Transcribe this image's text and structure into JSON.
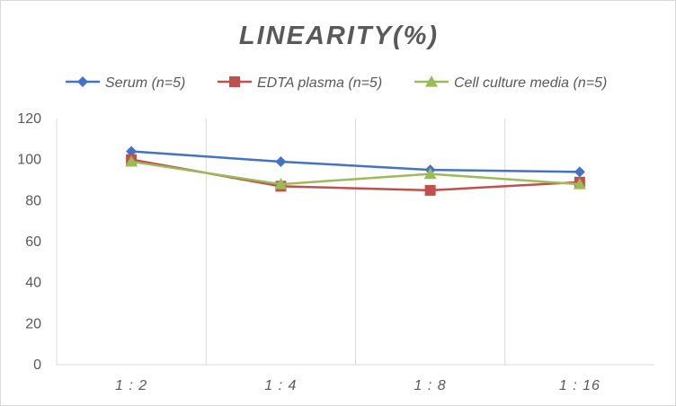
{
  "chart_data": {
    "type": "line",
    "title": "LINEARITY(%)",
    "xlabel": "",
    "ylabel": "",
    "categories": [
      "1:2",
      "1:4",
      "1:8",
      "1:16"
    ],
    "ylim": [
      0,
      120
    ],
    "yticks": [
      0,
      20,
      40,
      60,
      80,
      100,
      120
    ],
    "grid": "vertical",
    "legend_position": "top",
    "series": [
      {
        "name": "Serum (n=5)",
        "values": [
          104,
          99,
          95,
          94
        ],
        "color": "#4472c4",
        "marker": "diamond"
      },
      {
        "name": "EDTA plasma (n=5)",
        "values": [
          100,
          87,
          85,
          89
        ],
        "color": "#c0504d",
        "marker": "square"
      },
      {
        "name": "Cell culture media (n=5)",
        "values": [
          99,
          88,
          93,
          88
        ],
        "color": "#9bbb59",
        "marker": "triangle"
      }
    ]
  }
}
